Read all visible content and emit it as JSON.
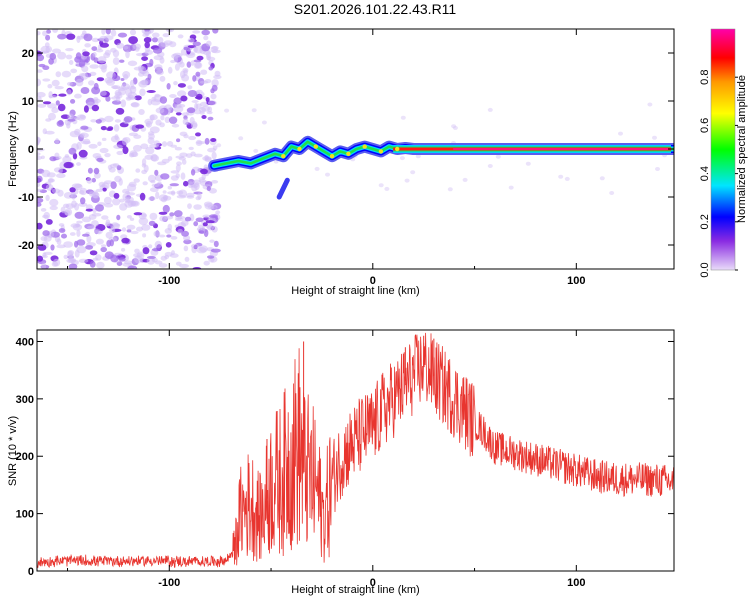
{
  "title": "S201.2026.101.22.43.R11",
  "chart_data": [
    {
      "type": "heatmap",
      "name": "spectrogram",
      "xlabel": "Height of straight line (km)",
      "ylabel": "Frequency (Hz)",
      "xlim": [
        -165,
        148
      ],
      "ylim": [
        -25,
        25
      ],
      "x_ticks": [
        -100,
        0,
        100
      ],
      "y_ticks": [
        -20,
        -10,
        0,
        10,
        20
      ],
      "noise_region_x": [
        -165,
        -78
      ],
      "onset_x": -78,
      "trace": {
        "x": [
          -78,
          -72,
          -66,
          -60,
          -54,
          -48,
          -44,
          -40,
          -36,
          -32,
          -28,
          -24,
          -20,
          -16,
          -12,
          -8,
          -4,
          0,
          4,
          8,
          12,
          16,
          20,
          30,
          40,
          60,
          80,
          100,
          120,
          148
        ],
        "y": [
          -3.5,
          -3.0,
          -2.5,
          -3.0,
          -2.0,
          -1.0,
          -1.5,
          0.5,
          0.0,
          1.5,
          0.5,
          -0.5,
          -1.5,
          -0.5,
          -1.0,
          0.0,
          0.5,
          0.0,
          -0.5,
          0.5,
          0.0,
          0.2,
          0.0,
          0.0,
          0.0,
          0.0,
          0.0,
          0.0,
          0.0,
          0.0
        ]
      },
      "colorbar": {
        "label": "Normalized spectral amplitude",
        "range": [
          0.0,
          1.0
        ],
        "ticks": [
          "0.0",
          "0.2",
          "0.4",
          "0.6",
          "0.8"
        ],
        "colors": [
          "#e9dcf9",
          "#8a2be2",
          "#0000ff",
          "#00e5ff",
          "#00ff00",
          "#ffff00",
          "#ff9900",
          "#ff0000",
          "#ff00aa"
        ]
      }
    },
    {
      "type": "line",
      "name": "snr",
      "xlabel": "Height of straight line (km)",
      "ylabel": "SNR (10 * v/v)",
      "xlim": [
        -165,
        148
      ],
      "ylim": [
        0,
        420
      ],
      "x_ticks": [
        -100,
        0,
        100
      ],
      "y_ticks": [
        0,
        100,
        200,
        300,
        400
      ],
      "color": "#e8352f",
      "series": [
        {
          "name": "SNR",
          "x": [
            -165,
            -150,
            -130,
            -110,
            -90,
            -80,
            -72,
            -68,
            -65,
            -60,
            -55,
            -50,
            -45,
            -40,
            -36,
            -34,
            -32,
            -28,
            -24,
            -20,
            -15,
            -10,
            -5,
            0,
            5,
            10,
            15,
            20,
            25,
            30,
            35,
            40,
            45,
            50,
            55,
            60,
            70,
            80,
            90,
            100,
            110,
            120,
            130,
            140,
            148
          ],
          "y": [
            15,
            18,
            17,
            18,
            16,
            17,
            18,
            40,
            100,
            120,
            90,
            150,
            160,
            200,
            220,
            180,
            170,
            150,
            90,
            160,
            200,
            220,
            240,
            250,
            280,
            300,
            320,
            340,
            360,
            340,
            320,
            300,
            280,
            260,
            240,
            215,
            205,
            195,
            185,
            175,
            165,
            160,
            160,
            158,
            155
          ]
        }
      ],
      "spikes": [
        {
          "x": -52,
          "y": 230
        },
        {
          "x": -34,
          "y": 400
        },
        {
          "x": 16,
          "y": 390
        },
        {
          "x": 25,
          "y": 410
        },
        {
          "x": 30,
          "y": 405
        }
      ]
    }
  ]
}
